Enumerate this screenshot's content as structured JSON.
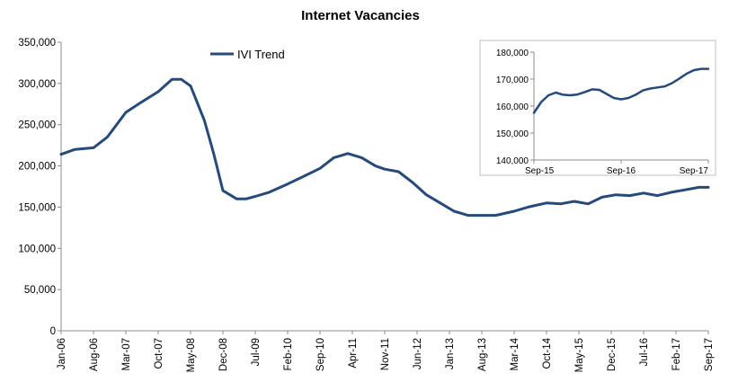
{
  "colors": {
    "line": "#254a7c",
    "axis": "#8c8c8c",
    "inset_border": "#bfbfbf",
    "grid": "#d9d9d9"
  },
  "chart_data": [
    {
      "type": "line",
      "title": "Internet Vacancies",
      "xlabel": "",
      "ylabel": "",
      "ylim": [
        0,
        350000
      ],
      "yticks": [
        "0",
        "50,000",
        "100,000",
        "150,000",
        "200,000",
        "250,000",
        "300,000",
        "350,000"
      ],
      "ytick_values": [
        0,
        50000,
        100000,
        150000,
        200000,
        250000,
        300000,
        350000
      ],
      "xlim": [
        "2006-01",
        "2017-09"
      ],
      "xtick_labels": [
        "Jan-06",
        "Aug-06",
        "Mar-07",
        "Oct-07",
        "May-08",
        "Dec-08",
        "Jul-09",
        "Feb-10",
        "Sep-10",
        "Apr-11",
        "Nov-11",
        "Jun-12",
        "Jan-13",
        "Aug-13",
        "Mar-14",
        "Oct-14",
        "May-15",
        "Dec-15",
        "Jul-16",
        "Feb-17",
        "Sep-17"
      ],
      "grid": false,
      "legend": "top-left",
      "series": [
        {
          "name": "IVI Trend",
          "x": [
            "2006-01",
            "2006-04",
            "2006-08",
            "2006-11",
            "2007-03",
            "2007-06",
            "2007-10",
            "2008-01",
            "2008-03",
            "2008-05",
            "2008-08",
            "2008-10",
            "2008-12",
            "2009-03",
            "2009-05",
            "2009-07",
            "2009-10",
            "2010-02",
            "2010-05",
            "2010-09",
            "2010-12",
            "2011-03",
            "2011-06",
            "2011-09",
            "2011-11",
            "2012-02",
            "2012-05",
            "2012-08",
            "2012-11",
            "2013-02",
            "2013-05",
            "2013-08",
            "2013-11",
            "2014-03",
            "2014-06",
            "2014-10",
            "2015-01",
            "2015-04",
            "2015-07",
            "2015-10",
            "2016-01",
            "2016-04",
            "2016-07",
            "2016-10",
            "2017-01",
            "2017-04",
            "2017-07",
            "2017-09"
          ],
          "values": [
            214000,
            220000,
            222000,
            235000,
            265000,
            276000,
            290000,
            305000,
            305000,
            297000,
            255000,
            215000,
            170000,
            160000,
            160000,
            163000,
            168000,
            178000,
            186000,
            197000,
            210000,
            215000,
            210000,
            200000,
            196000,
            193000,
            180000,
            165000,
            155000,
            145000,
            140000,
            140000,
            140000,
            145000,
            150000,
            155000,
            154000,
            157000,
            154000,
            162000,
            165000,
            164000,
            167000,
            164000,
            168000,
            171000,
            174000,
            174000
          ]
        }
      ]
    },
    {
      "type": "line",
      "title": "",
      "xlabel": "",
      "ylabel": "",
      "ylim": [
        140000,
        180000
      ],
      "yticks": [
        "140,000",
        "150,000",
        "160,000",
        "170,000",
        "180,000"
      ],
      "ytick_values": [
        140000,
        150000,
        160000,
        170000,
        180000
      ],
      "xlim": [
        "2015-09",
        "2017-09"
      ],
      "xtick_labels": [
        "Sep-15",
        "Sep-16",
        "Sep-17"
      ],
      "grid": false,
      "series": [
        {
          "x": [
            "2015-09",
            "2015-10",
            "2015-11",
            "2015-12",
            "2016-01",
            "2016-02",
            "2016-03",
            "2016-04",
            "2016-05",
            "2016-06",
            "2016-07",
            "2016-08",
            "2016-09",
            "2016-10",
            "2016-11",
            "2016-12",
            "2017-01",
            "2017-02",
            "2017-03",
            "2017-04",
            "2017-05",
            "2017-06",
            "2017-07",
            "2017-08",
            "2017-09"
          ],
          "values": [
            157500,
            161500,
            164000,
            165000,
            164200,
            164000,
            164300,
            165200,
            166200,
            166000,
            164500,
            163000,
            162500,
            163000,
            164200,
            165800,
            166500,
            166900,
            167300,
            168500,
            170200,
            172000,
            173300,
            173800,
            173800
          ]
        }
      ]
    }
  ]
}
